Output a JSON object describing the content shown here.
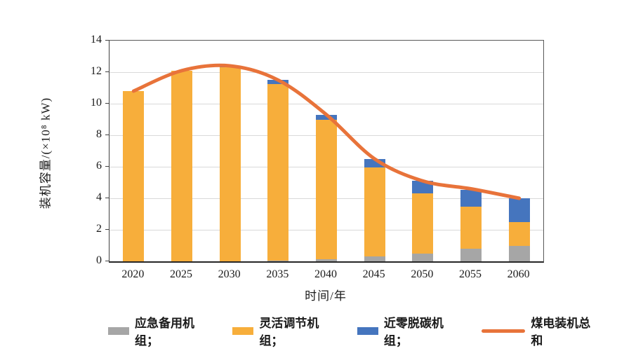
{
  "chart_data": {
    "type": "bar",
    "subtype": "stacked-bars-with-total-line",
    "categories": [
      "2020",
      "2025",
      "2030",
      "2035",
      "2040",
      "2045",
      "2050",
      "2055",
      "2060"
    ],
    "series": [
      {
        "name": "应急备用机组",
        "kind": "bar",
        "color": "#a6a6a6",
        "values": [
          0,
          0,
          0,
          0.05,
          0.15,
          0.3,
          0.5,
          0.8,
          1.0
        ]
      },
      {
        "name": "灵活调节机组",
        "kind": "bar",
        "color": "#f7ae3b",
        "values": [
          10.8,
          12.1,
          12.3,
          11.2,
          8.85,
          5.65,
          3.8,
          2.65,
          1.5
        ]
      },
      {
        "name": "近零脱碳机组",
        "kind": "bar",
        "color": "#4575be",
        "values": [
          0,
          0,
          0.1,
          0.25,
          0.3,
          0.55,
          0.8,
          1.1,
          1.5
        ]
      },
      {
        "name": "煤电装机总和",
        "kind": "line",
        "color": "#e8733a",
        "values": [
          10.8,
          12.1,
          12.4,
          11.5,
          9.3,
          6.5,
          5.1,
          4.6,
          4.0
        ]
      }
    ],
    "legend_labels": [
      "应急备用机组；",
      "灵活调节机组；",
      "近零脱碳机组；",
      "煤电装机总和"
    ],
    "title": "",
    "xlabel": "时间/年",
    "ylabel": "装机容量/(×10⁸ kW)",
    "ylim": [
      0,
      14
    ],
    "ytick_step": 2,
    "grid": "horizontal",
    "legend_position": "bottom",
    "colors": {
      "gridline": "#d9d9d9",
      "axis_frame": "#595959",
      "axis_bottom": "#262626",
      "text": "#1a1a1a",
      "background": "#ffffff"
    }
  }
}
